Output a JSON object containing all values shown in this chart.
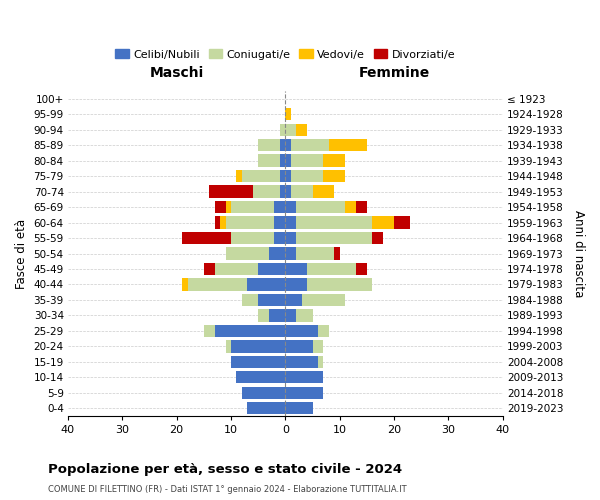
{
  "age_groups": [
    "0-4",
    "5-9",
    "10-14",
    "15-19",
    "20-24",
    "25-29",
    "30-34",
    "35-39",
    "40-44",
    "45-49",
    "50-54",
    "55-59",
    "60-64",
    "65-69",
    "70-74",
    "75-79",
    "80-84",
    "85-89",
    "90-94",
    "95-99",
    "100+"
  ],
  "birth_years": [
    "2019-2023",
    "2014-2018",
    "2009-2013",
    "2004-2008",
    "1999-2003",
    "1994-1998",
    "1989-1993",
    "1984-1988",
    "1979-1983",
    "1974-1978",
    "1969-1973",
    "1964-1968",
    "1959-1963",
    "1954-1958",
    "1949-1953",
    "1944-1948",
    "1939-1943",
    "1934-1938",
    "1929-1933",
    "1924-1928",
    "≤ 1923"
  ],
  "colors": {
    "celibi": "#4472C4",
    "coniugati": "#c5d9a0",
    "vedovi": "#ffc000",
    "divorziati": "#c00000"
  },
  "males": {
    "celibi": [
      7,
      8,
      9,
      10,
      10,
      13,
      3,
      5,
      7,
      5,
      3,
      2,
      2,
      2,
      1,
      1,
      1,
      1,
      0,
      0,
      0
    ],
    "coniugati": [
      0,
      0,
      0,
      0,
      1,
      2,
      2,
      3,
      11,
      8,
      8,
      8,
      9,
      8,
      5,
      7,
      4,
      4,
      1,
      0,
      0
    ],
    "vedovi": [
      0,
      0,
      0,
      0,
      0,
      0,
      0,
      0,
      1,
      0,
      0,
      0,
      1,
      1,
      0,
      1,
      0,
      0,
      0,
      0,
      0
    ],
    "divorziati": [
      0,
      0,
      0,
      0,
      0,
      0,
      0,
      0,
      0,
      2,
      0,
      9,
      1,
      2,
      8,
      0,
      0,
      0,
      0,
      0,
      0
    ]
  },
  "females": {
    "celibi": [
      5,
      7,
      7,
      6,
      5,
      6,
      2,
      3,
      4,
      4,
      2,
      2,
      2,
      2,
      1,
      1,
      1,
      1,
      0,
      0,
      0
    ],
    "coniugati": [
      0,
      0,
      0,
      1,
      2,
      2,
      3,
      8,
      12,
      9,
      7,
      14,
      14,
      9,
      4,
      6,
      6,
      7,
      2,
      0,
      0
    ],
    "vedovi": [
      0,
      0,
      0,
      0,
      0,
      0,
      0,
      0,
      0,
      0,
      0,
      0,
      4,
      2,
      4,
      4,
      4,
      7,
      2,
      1,
      0
    ],
    "divorziati": [
      0,
      0,
      0,
      0,
      0,
      0,
      0,
      0,
      0,
      2,
      1,
      2,
      3,
      2,
      0,
      0,
      0,
      0,
      0,
      0,
      0
    ]
  },
  "xlim": 40,
  "title": "Popolazione per età, sesso e stato civile - 2024",
  "subtitle": "COMUNE DI FILETTINO (FR) - Dati ISTAT 1° gennaio 2024 - Elaborazione TUTTITALIA.IT",
  "xlabel_left": "Maschi",
  "xlabel_right": "Femmine",
  "ylabel_left": "Fasce di età",
  "ylabel_right": "Anni di nascita",
  "legend_labels": [
    "Celibi/Nubili",
    "Coniugati/e",
    "Vedovi/e",
    "Divorziati/e"
  ],
  "bg_color": "#ffffff",
  "grid_color": "#cccccc"
}
